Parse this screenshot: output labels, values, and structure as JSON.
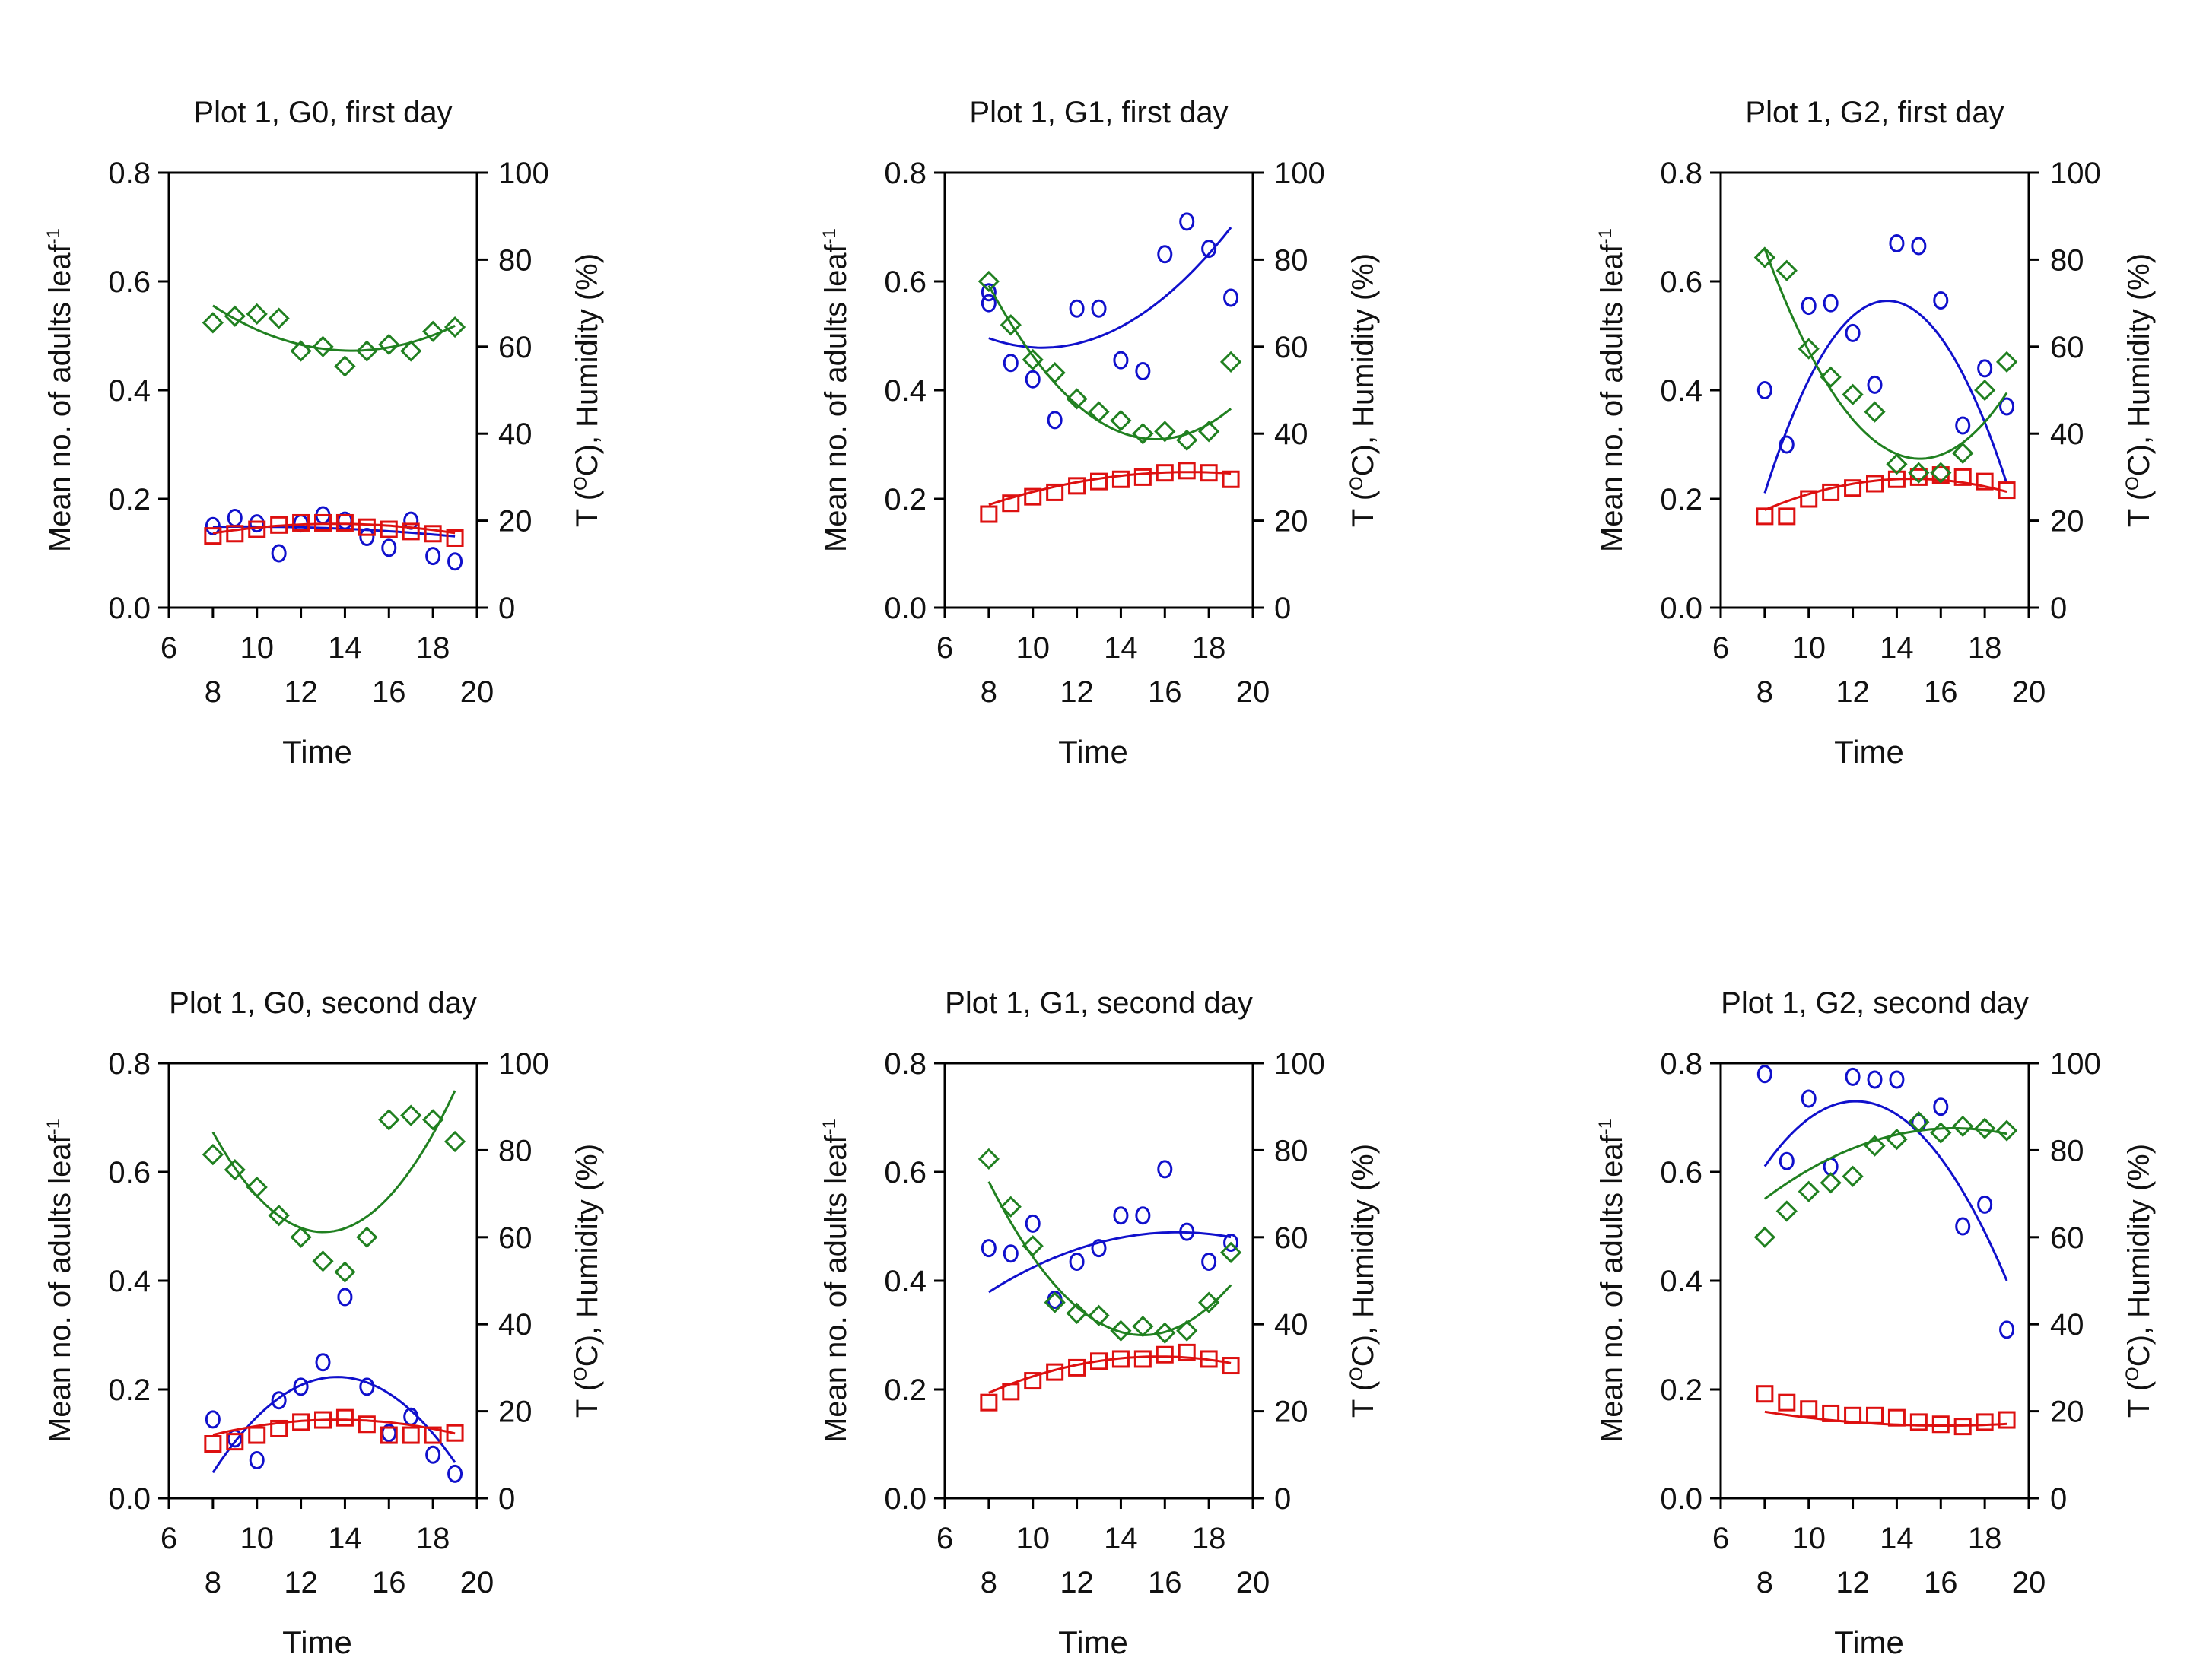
{
  "chart_data": [
    {
      "type": "scatter",
      "title": "Plot 1, G0, first day",
      "xlabel": "Time",
      "ylabel": "Mean no. of adults leaf",
      "ylabel_sup": "-1",
      "y2label_main": "T (",
      "y2label_sup": "O",
      "y2label_rest": "C), Humidity (%)",
      "xlim": [
        6,
        20
      ],
      "ylim": [
        0,
        0.8
      ],
      "y2lim": [
        0,
        100
      ],
      "x_upper_ticks": [
        "6",
        "10",
        "14",
        "18"
      ],
      "x_lower_ticks": [
        "8",
        "12",
        "16",
        "20"
      ],
      "y_ticks": [
        "0.0",
        "0.2",
        "0.4",
        "0.6",
        "0.8"
      ],
      "y2_ticks": [
        "0",
        "20",
        "40",
        "60",
        "80",
        "100"
      ],
      "series": [
        {
          "name": "Mean no. of adults leaf-1",
          "axis": "left",
          "marker": "circle",
          "color": "#1010cc",
          "x": [
            8,
            9,
            10,
            11,
            12,
            13,
            14,
            15,
            16,
            17,
            18,
            19
          ],
          "y": [
            0.15,
            0.165,
            0.155,
            0.1,
            0.155,
            0.17,
            0.16,
            0.13,
            0.11,
            0.16,
            0.095,
            0.085
          ],
          "fit": [
            -0.0002,
            0.0038,
            0.131
          ]
        },
        {
          "name": "T (OC)",
          "axis": "right",
          "marker": "square",
          "color": "#dd1010",
          "x": [
            8,
            9,
            10,
            11,
            12,
            13,
            14,
            15,
            16,
            17,
            18,
            19
          ],
          "y": [
            16.5,
            17,
            18,
            19,
            19.5,
            19.5,
            19.5,
            18.5,
            18,
            17.5,
            17,
            16
          ],
          "fit": [
            -0.071,
            1.92,
            6.3
          ]
        },
        {
          "name": "Humidity (%)",
          "axis": "right",
          "marker": "diamond",
          "color": "#208020",
          "x": [
            8,
            9,
            10,
            11,
            12,
            13,
            14,
            15,
            16,
            17,
            18,
            19
          ],
          "y": [
            65.5,
            67,
            67.5,
            66.5,
            59,
            60,
            55.5,
            59,
            60.5,
            59,
            63.5,
            64.5
          ],
          "fit": [
            0.26,
            -7.44,
            112.3
          ]
        }
      ]
    },
    {
      "type": "scatter",
      "title": "Plot 1, G1, first day",
      "xlabel": "Time",
      "ylabel": "Mean no. of adults leaf",
      "ylabel_sup": "-1",
      "y2label_main": "T (",
      "y2label_sup": "O",
      "y2label_rest": "C), Humidity (%)",
      "xlim": [
        6,
        20
      ],
      "ylim": [
        0,
        0.8
      ],
      "y2lim": [
        0,
        100
      ],
      "x_upper_ticks": [
        "6",
        "10",
        "14",
        "18"
      ],
      "x_lower_ticks": [
        "8",
        "12",
        "16",
        "20"
      ],
      "y_ticks": [
        "0.0",
        "0.2",
        "0.4",
        "0.6",
        "0.8"
      ],
      "y2_ticks": [
        "0",
        "20",
        "40",
        "60",
        "80",
        "100"
      ],
      "series": [
        {
          "name": "Mean no. of adults leaf-1",
          "axis": "left",
          "marker": "circle",
          "color": "#1010cc",
          "x": [
            8,
            8,
            9,
            10,
            11,
            12,
            13,
            14,
            15,
            16,
            17,
            18,
            19
          ],
          "y": [
            0.56,
            0.58,
            0.45,
            0.42,
            0.345,
            0.55,
            0.55,
            0.455,
            0.435,
            0.65,
            0.71,
            0.66,
            0.57
          ],
          "fit": [
            0.003,
            -0.0625,
            0.8036
          ]
        },
        {
          "name": "T (OC)",
          "axis": "right",
          "marker": "square",
          "color": "#dd1010",
          "x": [
            8,
            9,
            10,
            11,
            12,
            13,
            14,
            15,
            16,
            17,
            18,
            19
          ],
          "y": [
            21.5,
            24,
            25.5,
            26.5,
            28,
            29,
            29.5,
            30,
            31,
            31.5,
            31,
            29.5
          ],
          "fit": [
            -0.091,
            3.11,
            4.6
          ]
        },
        {
          "name": "Humidity (%)",
          "axis": "right",
          "marker": "diamond",
          "color": "#208020",
          "x": [
            8,
            9,
            10,
            11,
            12,
            13,
            14,
            15,
            16,
            17,
            18,
            19
          ],
          "y": [
            75,
            65,
            57,
            54,
            48,
            45,
            43,
            40,
            40.5,
            38.5,
            40.5,
            56.5
          ],
          "fit": [
            0.61,
            -19.04,
            187.3
          ]
        }
      ]
    },
    {
      "type": "scatter",
      "title": "Plot 1, G2, first day",
      "xlabel": "Time",
      "ylabel": "Mean no. of adults leaf",
      "ylabel_sup": "-1",
      "y2label_main": "T (",
      "y2label_sup": "O",
      "y2label_rest": "C), Humidity (%)",
      "xlim": [
        6,
        20
      ],
      "ylim": [
        0,
        0.8
      ],
      "y2lim": [
        0,
        100
      ],
      "x_upper_ticks": [
        "6",
        "10",
        "14",
        "18"
      ],
      "x_lower_ticks": [
        "8",
        "12",
        "16",
        "20"
      ],
      "y_ticks": [
        "0.0",
        "0.2",
        "0.4",
        "0.6",
        "0.8"
      ],
      "y2_ticks": [
        "0",
        "20",
        "40",
        "60",
        "80",
        "100"
      ],
      "series": [
        {
          "name": "Mean no. of adults leaf-1",
          "axis": "left",
          "marker": "circle",
          "color": "#1010cc",
          "x": [
            8,
            9,
            10,
            11,
            12,
            13,
            14,
            15,
            16,
            17,
            18,
            19
          ],
          "y": [
            0.4,
            0.3,
            0.555,
            0.56,
            0.505,
            0.41,
            0.67,
            0.665,
            0.565,
            0.335,
            0.44,
            0.37
          ],
          "fit": [
            -0.0114,
            0.3094,
            -1.535
          ]
        },
        {
          "name": "T (OC)",
          "axis": "right",
          "marker": "square",
          "color": "#dd1010",
          "x": [
            8,
            9,
            10,
            11,
            12,
            13,
            14,
            15,
            16,
            17,
            18,
            19
          ],
          "y": [
            21,
            21,
            25,
            26.5,
            27.5,
            28.5,
            29.5,
            30,
            30.5,
            30,
            29,
            27
          ],
          "fit": [
            -0.16,
            4.7,
            -4.9
          ]
        },
        {
          "name": "Humidity (%)",
          "axis": "right",
          "marker": "diamond",
          "color": "#208020",
          "x": [
            8,
            9,
            10,
            11,
            12,
            13,
            14,
            15,
            16,
            17,
            18,
            19
          ],
          "y": [
            80.5,
            77.5,
            59.5,
            53,
            49,
            45,
            33,
            31,
            31,
            35.5,
            50,
            56.5
          ],
          "fit": [
            0.97,
            -29.2,
            254
          ]
        }
      ]
    },
    {
      "type": "scatter",
      "title": "Plot 1, G0, second day",
      "xlabel": "Time",
      "ylabel": "Mean no. of adults leaf",
      "ylabel_sup": "-1",
      "y2label_main": "T (",
      "y2label_sup": "O",
      "y2label_rest": "C), Humidity (%)",
      "xlim": [
        6,
        20
      ],
      "ylim": [
        0,
        0.8
      ],
      "y2lim": [
        0,
        100
      ],
      "x_upper_ticks": [
        "6",
        "10",
        "14",
        "18"
      ],
      "x_lower_ticks": [
        "8",
        "12",
        "16",
        "20"
      ],
      "y_ticks": [
        "0.0",
        "0.2",
        "0.4",
        "0.6",
        "0.8"
      ],
      "y2_ticks": [
        "0",
        "20",
        "40",
        "60",
        "80",
        "100"
      ],
      "series": [
        {
          "name": "Mean no. of adults leaf-1",
          "axis": "left",
          "marker": "circle",
          "color": "#1010cc",
          "x": [
            8,
            9,
            10,
            11,
            12,
            13,
            14,
            15,
            16,
            17,
            18,
            19
          ],
          "y": [
            0.145,
            0.11,
            0.07,
            0.18,
            0.205,
            0.25,
            0.37,
            0.205,
            0.12,
            0.15,
            0.08,
            0.045
          ],
          "fit": [
            -0.0055,
            0.1502,
            -0.8025
          ]
        },
        {
          "name": "T (OC)",
          "axis": "right",
          "marker": "square",
          "color": "#dd1010",
          "x": [
            8,
            9,
            10,
            11,
            12,
            13,
            14,
            15,
            16,
            17,
            18,
            19
          ],
          "y": [
            12.5,
            13,
            14.5,
            16,
            17.5,
            18,
            18.5,
            17,
            14.5,
            14.5,
            14.5,
            15
          ],
          "fit": [
            -0.11,
            3.0,
            -2.4
          ]
        },
        {
          "name": "Humidity (%)",
          "axis": "right",
          "marker": "diamond",
          "color": "#208020",
          "x": [
            8,
            9,
            10,
            11,
            12,
            13,
            14,
            15,
            16,
            17,
            18,
            19
          ],
          "y": [
            79,
            75.5,
            71.5,
            65,
            60,
            54.5,
            52,
            60,
            87,
            88,
            87,
            82
          ],
          "fit": [
            0.91,
            -23.7,
            215.5
          ]
        }
      ]
    },
    {
      "type": "scatter",
      "title": "Plot 1, G1, second day",
      "xlabel": "Time",
      "ylabel": "Mean no. of adults leaf",
      "ylabel_sup": "-1",
      "y2label_main": "T (",
      "y2label_sup": "O",
      "y2label_rest": "C), Humidity (%)",
      "xlim": [
        6,
        20
      ],
      "ylim": [
        0,
        0.8
      ],
      "y2lim": [
        0,
        100
      ],
      "x_upper_ticks": [
        "6",
        "10",
        "14",
        "18"
      ],
      "x_lower_ticks": [
        "8",
        "12",
        "16",
        "20"
      ],
      "y_ticks": [
        "0.0",
        "0.2",
        "0.4",
        "0.6",
        "0.8"
      ],
      "y2_ticks": [
        "0",
        "20",
        "40",
        "60",
        "80",
        "100"
      ],
      "series": [
        {
          "name": "Mean no. of adults leaf-1",
          "axis": "left",
          "marker": "circle",
          "color": "#1010cc",
          "x": [
            8,
            9,
            10,
            11,
            12,
            13,
            14,
            15,
            16,
            17,
            18,
            19
          ],
          "y": [
            0.46,
            0.45,
            0.505,
            0.365,
            0.435,
            0.46,
            0.52,
            0.52,
            0.605,
            0.49,
            0.435,
            0.47
          ],
          "fit": [
            -0.0015,
            0.0497,
            0.0774
          ]
        },
        {
          "name": "T (OC)",
          "axis": "right",
          "marker": "square",
          "color": "#dd1010",
          "x": [
            8,
            9,
            10,
            11,
            12,
            13,
            14,
            15,
            16,
            17,
            18,
            19
          ],
          "y": [
            22,
            24.5,
            27,
            29,
            30,
            31.5,
            32,
            32,
            33,
            33.5,
            32,
            30.5
          ],
          "fit": [
            -0.14,
            4.4,
            -2.0
          ]
        },
        {
          "name": "Humidity (%)",
          "axis": "right",
          "marker": "diamond",
          "color": "#208020",
          "x": [
            8,
            9,
            10,
            11,
            12,
            13,
            14,
            15,
            16,
            17,
            18,
            19
          ],
          "y": [
            78,
            67,
            58,
            45,
            42.5,
            42,
            38.5,
            39.5,
            38,
            38.5,
            45,
            56.5
          ],
          "fit": [
            0.72,
            -21.6,
            199.5
          ]
        }
      ]
    },
    {
      "type": "scatter",
      "title": "Plot 1, G2, second day",
      "xlabel": "Time",
      "ylabel": "Mean no. of adults leaf",
      "ylabel_sup": "-1",
      "y2label_main": "T (",
      "y2label_sup": "O",
      "y2label_rest": "C), Humidity (%)",
      "xlim": [
        6,
        20
      ],
      "ylim": [
        0,
        0.8
      ],
      "y2lim": [
        0,
        100
      ],
      "x_upper_ticks": [
        "6",
        "10",
        "14",
        "18"
      ],
      "x_lower_ticks": [
        "8",
        "12",
        "16",
        "20"
      ],
      "y_ticks": [
        "0.0",
        "0.2",
        "0.4",
        "0.6",
        "0.8"
      ],
      "y2_ticks": [
        "0",
        "20",
        "40",
        "60",
        "80",
        "100"
      ],
      "series": [
        {
          "name": "Mean no. of adults leaf-1",
          "axis": "left",
          "marker": "circle",
          "color": "#1010cc",
          "x": [
            8,
            9,
            10,
            11,
            12,
            13,
            14,
            15,
            16,
            17,
            18,
            19
          ],
          "y": [
            0.78,
            0.62,
            0.735,
            0.61,
            0.775,
            0.77,
            0.77,
            0.69,
            0.72,
            0.5,
            0.54,
            0.31
          ],
          "fit": [
            -0.007,
            0.1699,
            -0.3009
          ]
        },
        {
          "name": "T (OC)",
          "axis": "right",
          "marker": "square",
          "color": "#dd1010",
          "x": [
            8,
            9,
            10,
            11,
            12,
            13,
            14,
            15,
            16,
            17,
            18,
            19
          ],
          "y": [
            24,
            22,
            20.5,
            19.5,
            19,
            19,
            18.5,
            17.5,
            17,
            16.5,
            17.5,
            18
          ],
          "fit": [
            0.048,
            -1.55,
            29.2
          ]
        },
        {
          "name": "Humidity (%)",
          "axis": "right",
          "marker": "diamond",
          "color": "#208020",
          "x": [
            8,
            9,
            10,
            11,
            12,
            13,
            14,
            15,
            16,
            17,
            18,
            19
          ],
          "y": [
            60,
            66,
            70.5,
            72.5,
            74,
            81,
            82.5,
            86.5,
            84,
            85.5,
            85,
            84.5
          ],
          "fit": [
            -0.22,
            7.3,
            24.5
          ]
        }
      ]
    }
  ]
}
